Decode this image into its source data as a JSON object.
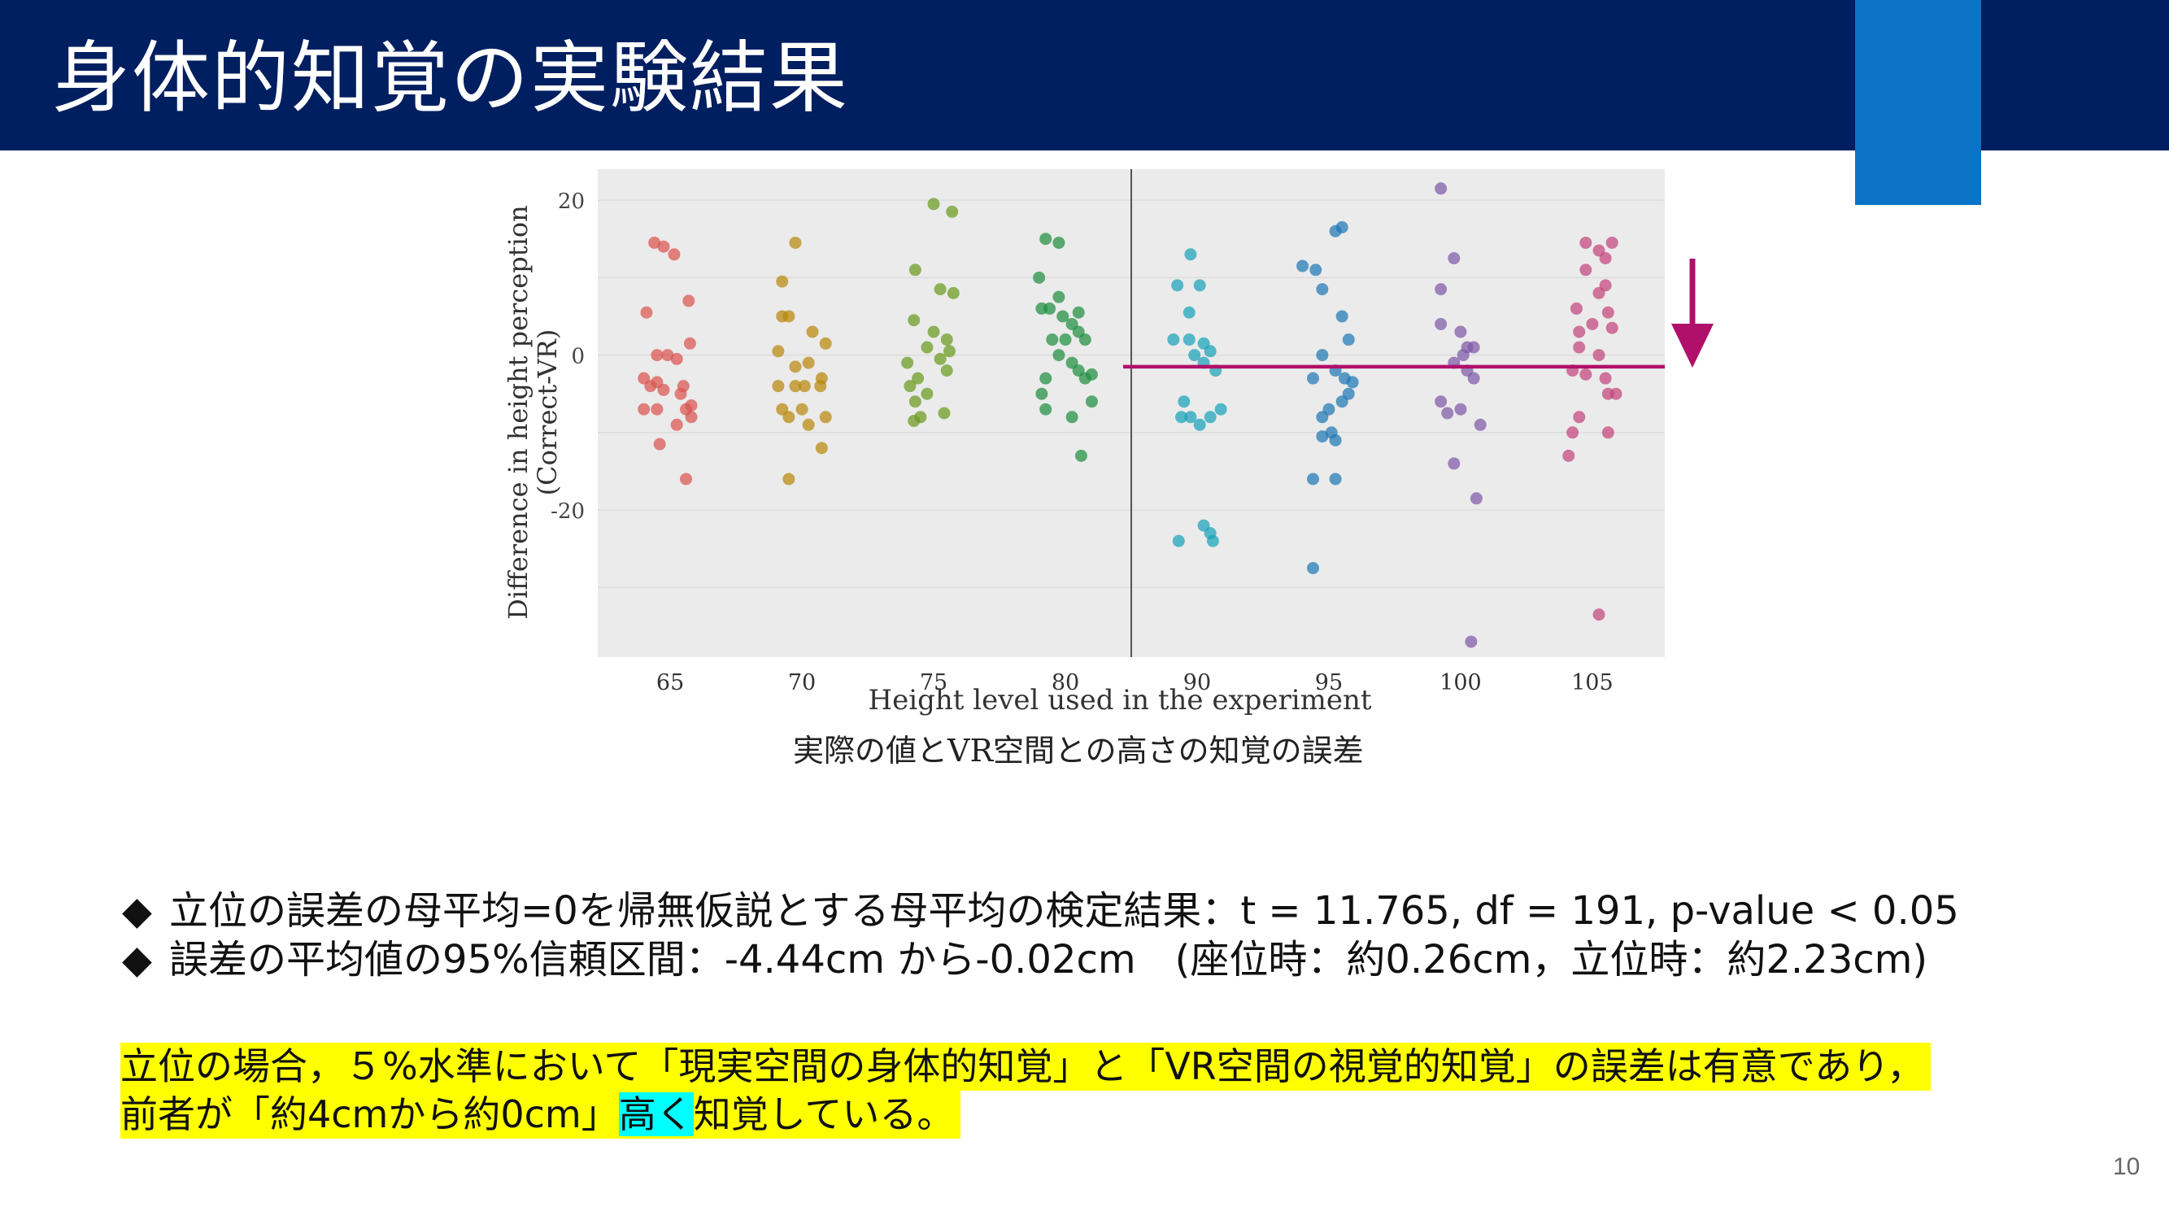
{
  "slide": {
    "title": "身体的知覚の実験結果",
    "page_number": "10",
    "colors": {
      "header": "#001f60",
      "accent": "#0a73c6",
      "highlight_yellow": "#ffff00",
      "highlight_cyan": "#00ffff"
    }
  },
  "figure": {
    "caption": "実際の値とVR空間との高さの知覚の誤差",
    "annotation": {
      "line_y": -1.5,
      "arrow_color": "#b0106a"
    }
  },
  "chart_data": {
    "type": "scatter",
    "xlabel": "Height level used in the experiment",
    "ylabel": "Difference in height perception",
    "ylabel2": "(Correct-VR)",
    "categories": [
      "65",
      "70",
      "75",
      "80",
      "90",
      "95",
      "100",
      "105"
    ],
    "ylim": [
      -39,
      24
    ],
    "yticks": [
      20,
      0,
      -20
    ],
    "grid": true,
    "divider_between": [
      "80",
      "90"
    ],
    "series": [
      {
        "category": "65",
        "color": "#d9534f",
        "points": [
          [
            -0.12,
            14.5
          ],
          [
            -0.05,
            14
          ],
          [
            0.03,
            13
          ],
          [
            0.14,
            7
          ],
          [
            -0.18,
            5.5
          ],
          [
            0.15,
            1.5
          ],
          [
            -0.1,
            0
          ],
          [
            -0.02,
            0
          ],
          [
            0.05,
            -0.5
          ],
          [
            -0.2,
            -3
          ],
          [
            -0.1,
            -3.5
          ],
          [
            -0.15,
            -4
          ],
          [
            0.1,
            -4
          ],
          [
            -0.05,
            -4.5
          ],
          [
            0.08,
            -5
          ],
          [
            0.16,
            -6.5
          ],
          [
            -0.2,
            -7
          ],
          [
            -0.1,
            -7
          ],
          [
            0.12,
            -7
          ],
          [
            0.16,
            -8
          ],
          [
            0.05,
            -9
          ],
          [
            -0.08,
            -11.5
          ],
          [
            0.12,
            -16
          ]
        ]
      },
      {
        "category": "70",
        "color": "#b8860b",
        "points": [
          [
            -0.05,
            14.5
          ],
          [
            -0.15,
            9.5
          ],
          [
            -0.15,
            5
          ],
          [
            -0.1,
            5
          ],
          [
            0.08,
            3
          ],
          [
            0.18,
            1.5
          ],
          [
            -0.18,
            0.5
          ],
          [
            0.05,
            -1
          ],
          [
            -0.05,
            -1.5
          ],
          [
            0.15,
            -3
          ],
          [
            -0.18,
            -4
          ],
          [
            -0.05,
            -4
          ],
          [
            0.02,
            -4
          ],
          [
            0.14,
            -4
          ],
          [
            -0.15,
            -7
          ],
          [
            0,
            -7
          ],
          [
            -0.1,
            -8
          ],
          [
            0.18,
            -8
          ],
          [
            0.05,
            -9
          ],
          [
            0.15,
            -12
          ],
          [
            -0.1,
            -16
          ]
        ]
      },
      {
        "category": "75",
        "color": "#6a9a1f",
        "points": [
          [
            0,
            19.5
          ],
          [
            0.14,
            18.5
          ],
          [
            -0.14,
            11
          ],
          [
            0.05,
            8.5
          ],
          [
            0.15,
            8
          ],
          [
            -0.15,
            4.5
          ],
          [
            0,
            3
          ],
          [
            0.1,
            2
          ],
          [
            -0.05,
            1
          ],
          [
            0.12,
            0.5
          ],
          [
            0.05,
            -0.5
          ],
          [
            -0.2,
            -1
          ],
          [
            0.1,
            -2
          ],
          [
            -0.12,
            -3
          ],
          [
            -0.18,
            -4
          ],
          [
            -0.05,
            -5
          ],
          [
            -0.14,
            -6
          ],
          [
            0.08,
            -7.5
          ],
          [
            -0.1,
            -8
          ],
          [
            -0.15,
            -8.5
          ]
        ]
      },
      {
        "category": "80",
        "color": "#1e8e3e",
        "points": [
          [
            -0.15,
            15
          ],
          [
            -0.05,
            14.5
          ],
          [
            -0.2,
            10
          ],
          [
            -0.05,
            7.5
          ],
          [
            -0.18,
            6
          ],
          [
            -0.12,
            6
          ],
          [
            0.1,
            5.5
          ],
          [
            -0.02,
            5
          ],
          [
            0.05,
            4
          ],
          [
            0.1,
            3
          ],
          [
            -0.1,
            2
          ],
          [
            0,
            2
          ],
          [
            0.15,
            2
          ],
          [
            -0.05,
            0
          ],
          [
            0.05,
            -1
          ],
          [
            0.1,
            -2
          ],
          [
            0.2,
            -2.5
          ],
          [
            -0.15,
            -3
          ],
          [
            0.15,
            -3
          ],
          [
            -0.18,
            -5
          ],
          [
            0.2,
            -6
          ],
          [
            -0.15,
            -7
          ],
          [
            0.05,
            -8
          ],
          [
            0.12,
            -13
          ]
        ]
      },
      {
        "category": "90",
        "color": "#17a2b8",
        "points": [
          [
            -0.05,
            13
          ],
          [
            -0.15,
            9
          ],
          [
            0.02,
            9
          ],
          [
            -0.06,
            5.5
          ],
          [
            -0.18,
            2
          ],
          [
            -0.06,
            2
          ],
          [
            0.05,
            1.5
          ],
          [
            -0.02,
            0
          ],
          [
            0.1,
            0.5
          ],
          [
            0.05,
            -1
          ],
          [
            0.14,
            -2
          ],
          [
            -0.1,
            -6
          ],
          [
            0.18,
            -7
          ],
          [
            -0.12,
            -8
          ],
          [
            -0.05,
            -8
          ],
          [
            0.1,
            -8
          ],
          [
            0.02,
            -9
          ],
          [
            0.05,
            -22
          ],
          [
            0.1,
            -23
          ],
          [
            -0.14,
            -24
          ],
          [
            0.12,
            -24
          ]
        ]
      },
      {
        "category": "95",
        "color": "#1f77b4",
        "points": [
          [
            -0.2,
            11.5
          ],
          [
            -0.1,
            11
          ],
          [
            0.05,
            16
          ],
          [
            0.1,
            16.5
          ],
          [
            -0.05,
            8.5
          ],
          [
            0.1,
            5
          ],
          [
            0.15,
            2
          ],
          [
            -0.05,
            0
          ],
          [
            0.05,
            -2
          ],
          [
            -0.12,
            -3
          ],
          [
            0.12,
            -3
          ],
          [
            0.18,
            -3.5
          ],
          [
            0.15,
            -5
          ],
          [
            0.1,
            -6
          ],
          [
            0,
            -7
          ],
          [
            -0.05,
            -8
          ],
          [
            0.02,
            -10
          ],
          [
            -0.05,
            -10.5
          ],
          [
            0.05,
            -11
          ],
          [
            -0.12,
            -16
          ],
          [
            0.05,
            -16
          ],
          [
            -0.12,
            -27.5
          ]
        ]
      },
      {
        "category": "100",
        "color": "#7e57a7",
        "points": [
          [
            -0.15,
            21.5
          ],
          [
            -0.05,
            12.5
          ],
          [
            -0.15,
            8.5
          ],
          [
            -0.15,
            4
          ],
          [
            0,
            3
          ],
          [
            0.05,
            1
          ],
          [
            0.1,
            1
          ],
          [
            0.02,
            0
          ],
          [
            -0.05,
            -1
          ],
          [
            0.05,
            -2
          ],
          [
            0.1,
            -3
          ],
          [
            -0.15,
            -6
          ],
          [
            -0.1,
            -7.5
          ],
          [
            0,
            -7
          ],
          [
            0.15,
            -9
          ],
          [
            -0.05,
            -14
          ],
          [
            0.12,
            -18.5
          ],
          [
            0.08,
            -37
          ]
        ]
      },
      {
        "category": "105",
        "color": "#c2447c",
        "points": [
          [
            -0.05,
            14.5
          ],
          [
            0.05,
            13.5
          ],
          [
            0.15,
            14.5
          ],
          [
            0.1,
            12.5
          ],
          [
            -0.05,
            11
          ],
          [
            0.1,
            9
          ],
          [
            0.05,
            8
          ],
          [
            -0.12,
            6
          ],
          [
            0.12,
            5.5
          ],
          [
            -0.1,
            3
          ],
          [
            0,
            4
          ],
          [
            0.15,
            3.5
          ],
          [
            -0.1,
            1
          ],
          [
            0.05,
            0
          ],
          [
            -0.15,
            -2
          ],
          [
            -0.05,
            -2.5
          ],
          [
            0.1,
            -3
          ],
          [
            0.12,
            -5
          ],
          [
            0.18,
            -5
          ],
          [
            -0.1,
            -8
          ],
          [
            0.12,
            -10
          ],
          [
            -0.15,
            -10
          ],
          [
            -0.18,
            -13
          ],
          [
            0.05,
            -33.5
          ]
        ]
      }
    ]
  },
  "bullets": [
    {
      "mark": "◆",
      "text": "立位の誤差の母平均=0を帰無仮説とする母平均の検定結果：t = 11.765, df = 191, p-value < 0.05"
    },
    {
      "mark": "◆",
      "text": "誤差の平均値の95%信頼区間：-4.44cm から-0.02cm　(座位時：約0.26cm，立位時：約2.23cm)"
    }
  ],
  "conclusion": {
    "line1": "立位の場合，５%水準において「現実空間の身体的知覚」と「VR空間の視覚的知覚」の誤差は有意であり，",
    "line2_before": "前者が「約4cmから約0cm」",
    "line2_highlight": "高く",
    "line2_after": "知覚している。"
  }
}
